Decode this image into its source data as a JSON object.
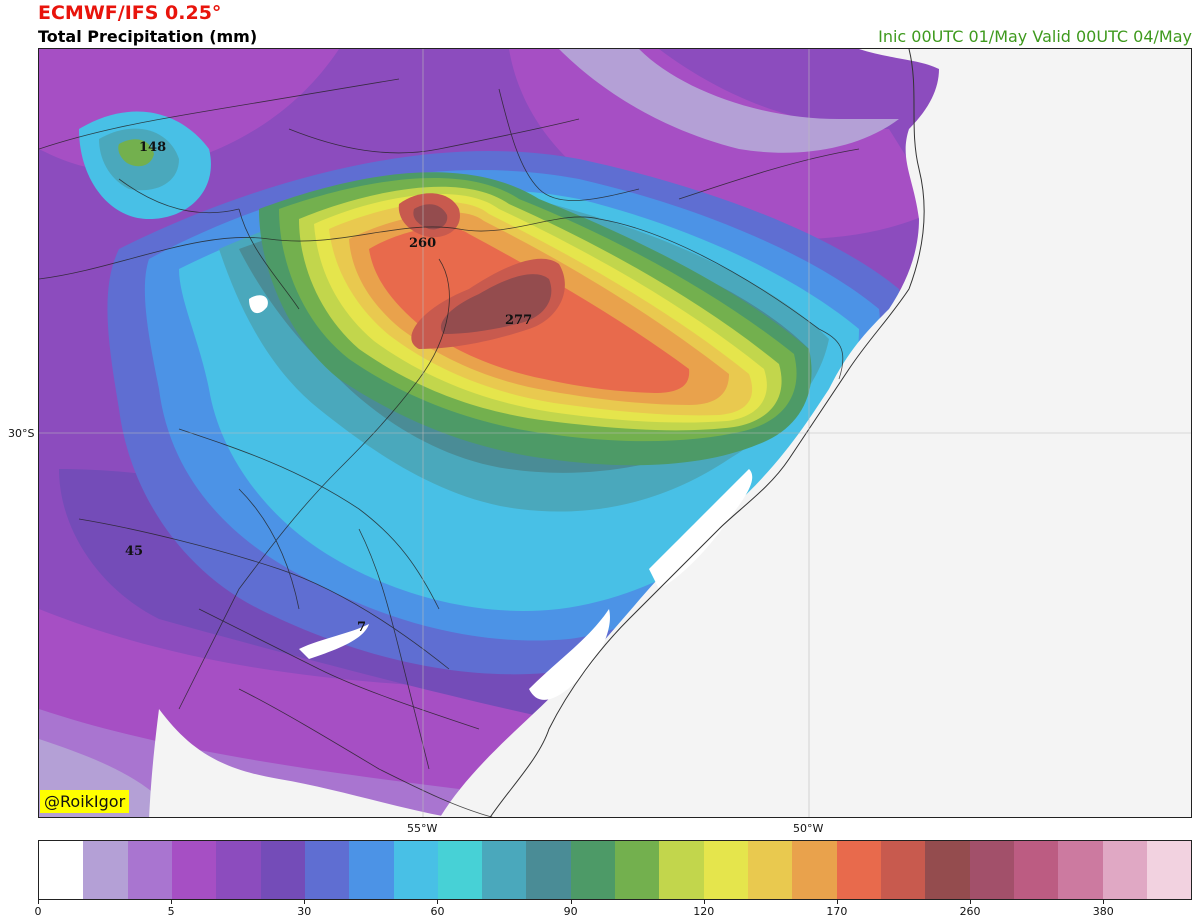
{
  "header": {
    "model": "ECMWF/IFS 0.25°",
    "field": "Total Precipitation (mm)",
    "times": "Inic 00UTC 01/May  Valid 00UTC 04/May"
  },
  "credit": "@RoikIgor",
  "axes": {
    "lat_label": "30°S",
    "lon_labels": [
      "55°W",
      "50°W"
    ]
  },
  "map_labels": {
    "max_148": "148",
    "max_260": "260",
    "max_277": "277",
    "min_45": "45",
    "small_7": "7"
  },
  "colorbar": {
    "colors": [
      "#ffffff",
      "#b4a0d6",
      "#a975d0",
      "#a64fc4",
      "#8c4cbe",
      "#744cb8",
      "#5f6ed2",
      "#4c93e6",
      "#48c0e6",
      "#47d1d6",
      "#4aa8bc",
      "#4a8c96",
      "#4d9a67",
      "#73b04e",
      "#c2d64c",
      "#e5e54c",
      "#e9c94f",
      "#e9a24c",
      "#e86a4c",
      "#c85a4e",
      "#944c4e",
      "#a2506a",
      "#bc5c82",
      "#cc7aa0",
      "#e0a8c4",
      "#f2d2e0"
    ],
    "tick_labels": [
      "0",
      "5",
      "30",
      "60",
      "90",
      "120",
      "170",
      "260",
      "380"
    ],
    "tick_segment_index": [
      0,
      3,
      6,
      9,
      12,
      15,
      18,
      21,
      24
    ]
  }
}
